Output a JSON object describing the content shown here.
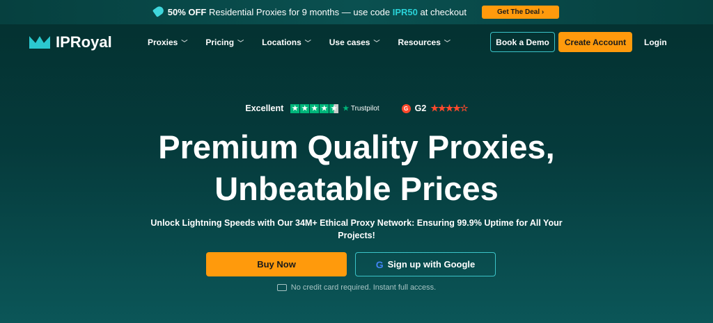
{
  "banner": {
    "text_before": "50% OFF",
    "text_middle": " Residential Proxies for 9 months — use code ",
    "code": "IPR50",
    "text_after": " at checkout",
    "cta": "Get The Deal",
    "cta_icon": "chevron-right-icon"
  },
  "nav": {
    "logo": "IPRoyal",
    "menu": [
      "Proxies",
      "Pricing",
      "Locations",
      "Use cases",
      "Resources"
    ],
    "book_demo": "Book a Demo",
    "create_account": "Create Account",
    "login": "Login"
  },
  "ratings": {
    "trustpilot_label": "Excellent",
    "trustpilot_brand": "Trustpilot",
    "trustpilot_stars": 4.5,
    "g2_label": "G2",
    "g2_stars": 4.5
  },
  "hero": {
    "title_line1": "Premium Quality Proxies,",
    "title_line2": "Unbeatable Prices",
    "subtitle": "Unlock Lightning Speeds with Our 34M+ Ethical Proxy Network: Ensuring 99.9% Uptime for All Your Projects!",
    "buy_now": "Buy Now",
    "google_signup": "Sign up with Google",
    "note": "No credit card required. Instant full access."
  },
  "colors": {
    "accent": "#ff9a0c",
    "teal": "#2ad3d8",
    "background": "#04302f"
  }
}
